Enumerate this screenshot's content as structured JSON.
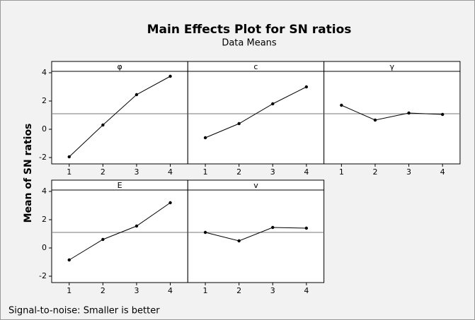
{
  "title": "Main Effects Plot for SN ratios",
  "subtitle": "Data Means",
  "ylabel": "Mean of SN ratios",
  "footnote": "Signal-to-noise: Smaller is better",
  "chart_data": [
    {
      "type": "line",
      "title": "φ",
      "x": [
        1,
        2,
        3,
        4
      ],
      "values": [
        -1.95,
        0.3,
        2.45,
        3.75
      ],
      "color": "#000000",
      "xlim": [
        0.48,
        4.52
      ],
      "xticks": [
        1,
        2,
        3,
        4
      ],
      "ylim": [
        -2.45,
        4.1
      ],
      "yticks": [
        -2,
        0,
        2,
        4
      ],
      "reference_line": 1.1
    },
    {
      "type": "line",
      "title": "c",
      "x": [
        1,
        2,
        3,
        4
      ],
      "values": [
        -0.6,
        0.4,
        1.8,
        3.0
      ],
      "color": "#000000",
      "xlim": [
        0.48,
        4.52
      ],
      "xticks": [
        1,
        2,
        3,
        4
      ],
      "ylim": [
        -2.45,
        4.1
      ],
      "yticks": [
        -2,
        0,
        2,
        4
      ],
      "reference_line": 1.1
    },
    {
      "type": "line",
      "title": "γ",
      "x": [
        1,
        2,
        3,
        4
      ],
      "values": [
        1.7,
        0.65,
        1.15,
        1.05
      ],
      "color": "#000000",
      "xlim": [
        0.48,
        4.52
      ],
      "xticks": [
        1,
        2,
        3,
        4
      ],
      "ylim": [
        -2.45,
        4.1
      ],
      "yticks": [
        -2,
        0,
        2,
        4
      ],
      "reference_line": 1.1
    },
    {
      "type": "line",
      "title": "E",
      "x": [
        1,
        2,
        3,
        4
      ],
      "values": [
        -0.85,
        0.6,
        1.55,
        3.2
      ],
      "color": "#000000",
      "xlim": [
        0.48,
        4.52
      ],
      "xticks": [
        1,
        2,
        3,
        4
      ],
      "ylim": [
        -2.45,
        4.1
      ],
      "yticks": [
        -2,
        0,
        2,
        4
      ],
      "reference_line": 1.1
    },
    {
      "type": "line",
      "title": "v",
      "x": [
        1,
        2,
        3,
        4
      ],
      "values": [
        1.1,
        0.5,
        1.45,
        1.4
      ],
      "color": "#000000",
      "xlim": [
        0.48,
        4.52
      ],
      "xticks": [
        1,
        2,
        3,
        4
      ],
      "ylim": [
        -2.45,
        4.1
      ],
      "yticks": [
        -2,
        0,
        2,
        4
      ],
      "reference_line": 1.1
    }
  ]
}
